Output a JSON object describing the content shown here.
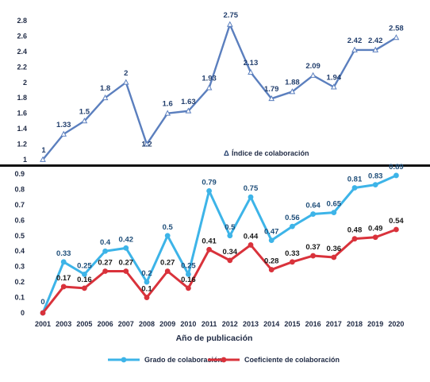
{
  "chart_data": [
    {
      "type": "line",
      "x": [
        "2001",
        "2003",
        "2005",
        "2006",
        "2007",
        "2008",
        "2009",
        "2010",
        "2011",
        "2012",
        "2013",
        "2014",
        "2015",
        "2016",
        "2017",
        "2018",
        "2019",
        "2020"
      ],
      "series": [
        {
          "name": "Índice de colaboración",
          "values": [
            1,
            1.33,
            1.5,
            1.8,
            2,
            1.2,
            1.6,
            1.63,
            1.93,
            2.75,
            2.13,
            1.79,
            1.88,
            2.09,
            1.94,
            2.42,
            2.42,
            2.58
          ],
          "labels": [
            "1",
            "1.33",
            "1.5",
            "1.8",
            "2",
            "1.2",
            "1.6",
            "1.63",
            "1.93",
            "2.75",
            "2.13",
            "1.79",
            "1.88",
            "2.09",
            "1.94",
            "2.42",
            "2.42",
            "2.58"
          ],
          "color": "#5b7fbe",
          "marker": "triangle"
        }
      ],
      "legend_symbol": "Δ",
      "yticks": [
        "1",
        "1.2",
        "1.4",
        "1.6",
        "1.8",
        "2",
        "2.2",
        "2.4",
        "2.6",
        "2.8"
      ],
      "ylim": [
        1,
        2.8
      ],
      "grid": false,
      "legend_placement": "bottom-right inside plot"
    },
    {
      "type": "line",
      "x": [
        "2001",
        "2003",
        "2005",
        "2006",
        "2007",
        "2008",
        "2009",
        "2010",
        "2011",
        "2012",
        "2013",
        "2014",
        "2015",
        "2016",
        "2017",
        "2018",
        "2019",
        "2020"
      ],
      "series": [
        {
          "name": "Grado de colaboración",
          "values": [
            0,
            0.33,
            0.25,
            0.4,
            0.42,
            0.2,
            0.5,
            0.25,
            0.79,
            0.5,
            0.75,
            0.47,
            0.56,
            0.64,
            0.65,
            0.81,
            0.83,
            0.89
          ],
          "labels": [
            "0",
            "0.33",
            "0.25",
            "0.4",
            "0.42",
            "0.2",
            "0.5",
            "0.25",
            "0.79",
            "0.5",
            "0.75",
            "0.47",
            "0.56",
            "0.64",
            "0.65",
            "0.81",
            "0.83",
            "0.89"
          ],
          "color": "#3db4e8"
        },
        {
          "name": "Coeficiente de colaboración",
          "values": [
            0,
            0.17,
            0.16,
            0.27,
            0.27,
            0.1,
            0.27,
            0.16,
            0.41,
            0.34,
            0.44,
            0.28,
            0.33,
            0.37,
            0.36,
            0.48,
            0.49,
            0.54
          ],
          "labels": [
            "",
            "0.17",
            "0.16",
            "0.27",
            "0.27",
            "0.1",
            "0.27",
            "0.16",
            "0.41",
            "0.34",
            "0.44",
            "0.28",
            "0.33",
            "0.37",
            "0.36",
            "0.48",
            "0.49",
            "0.54"
          ],
          "color": "#d9323b"
        }
      ],
      "yticks": [
        "0",
        "0.1",
        "0.2",
        "0.3",
        "0.4",
        "0.5",
        "0.6",
        "0.7",
        "0.8",
        "0.9"
      ],
      "ylim": [
        0,
        0.9
      ],
      "xlabel": "Año de publicación",
      "grid": false,
      "legend_placement": "bottom"
    }
  ]
}
